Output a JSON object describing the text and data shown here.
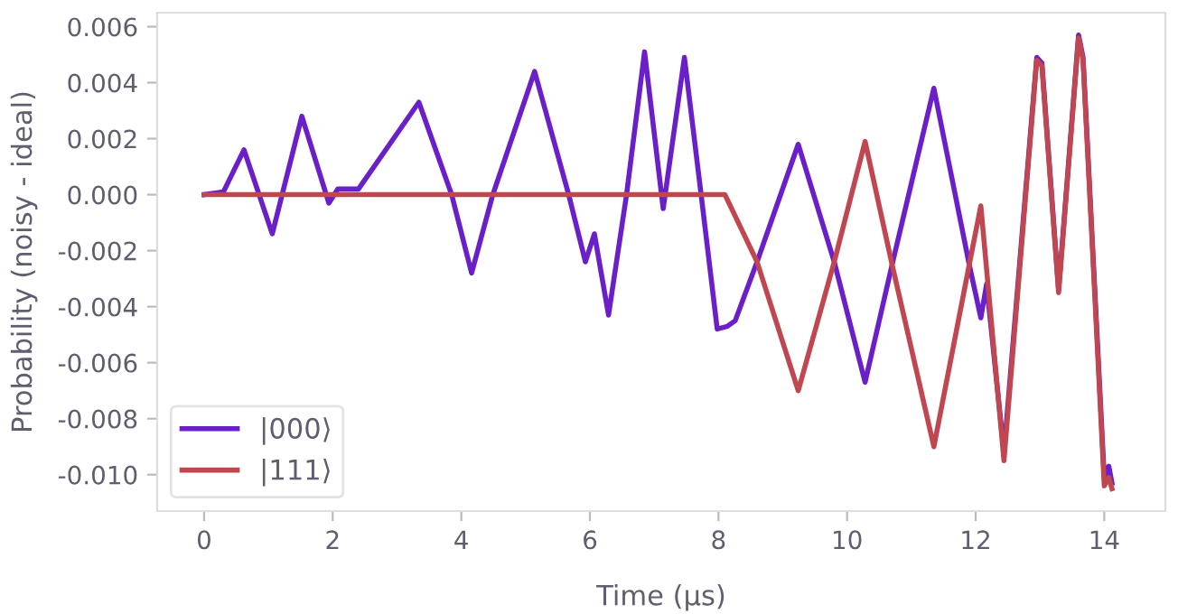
{
  "chart_data": {
    "type": "line",
    "xlabel": "Time (µs)",
    "ylabel": "Probability (noisy - ideal)",
    "series": [
      {
        "name": "|000⟩",
        "color": "#6a1fc8",
        "x": [
          0,
          0.3,
          0.62,
          1.06,
          1.52,
          1.94,
          2.08,
          2.4,
          3.34,
          3.85,
          4.16,
          4.49,
          5.14,
          5.67,
          5.93,
          6.07,
          6.29,
          6.57,
          6.85,
          7.14,
          7.47,
          7.73,
          7.98,
          8.14,
          8.26,
          8.6,
          9.24,
          9.8,
          10.28,
          10.7,
          11.35,
          11.9,
          12.08,
          12.17,
          12.44,
          12.95,
          13.03,
          13.29,
          13.6,
          13.67,
          14.0,
          14.07,
          14.12
        ],
        "values": [
          0,
          0.0001,
          0.0016,
          -0.0014,
          0.0028,
          -0.0003,
          0.0002,
          0.0002,
          0.0033,
          0,
          -0.0028,
          0,
          0.0044,
          0,
          -0.0024,
          -0.0014,
          -0.0043,
          0,
          0.0051,
          -0.0005,
          0.0049,
          0,
          -0.0048,
          -0.0047,
          -0.0045,
          -0.0024,
          0.0018,
          -0.0024,
          -0.0067,
          -0.0025,
          0.0038,
          -0.0025,
          -0.0044,
          -0.0032,
          -0.0092,
          0.0049,
          0.0047,
          -0.0034,
          0.0057,
          0.0049,
          -0.0101,
          -0.0097,
          -0.0103
        ]
      },
      {
        "name": "|111⟩",
        "color": "#c0474f",
        "x": [
          0,
          8.1,
          8.6,
          9.24,
          9.8,
          10.28,
          10.7,
          11.35,
          11.9,
          12.08,
          12.44,
          12.95,
          13.03,
          13.29,
          13.6,
          13.67,
          14.0,
          14.07,
          14.12
        ],
        "values": [
          0,
          0,
          -0.0024,
          -0.007,
          -0.0024,
          0.0019,
          -0.0025,
          -0.009,
          -0.0025,
          -0.0004,
          -0.0095,
          0.0048,
          0.0046,
          -0.0035,
          0.0056,
          0.0048,
          -0.0104,
          -0.0101,
          -0.0105
        ]
      }
    ],
    "xlim": [
      -0.73,
      14.95
    ],
    "ylim": [
      -0.0113,
      0.0065
    ],
    "xticks": [
      0,
      2,
      4,
      6,
      8,
      10,
      12,
      14
    ],
    "yticks": [
      {
        "value": -0.01,
        "label": "-0.010"
      },
      {
        "value": -0.008,
        "label": "-0.008"
      },
      {
        "value": -0.006,
        "label": "-0.006"
      },
      {
        "value": -0.004,
        "label": "-0.004"
      },
      {
        "value": -0.002,
        "label": "-0.002"
      },
      {
        "value": 0,
        "label": "0.000"
      },
      {
        "value": 0.002,
        "label": "0.002"
      },
      {
        "value": 0.004,
        "label": "0.004"
      },
      {
        "value": 0.006,
        "label": "0.006"
      }
    ],
    "legend": "bottom left",
    "grid": false,
    "line_style": "solid",
    "marker": "none"
  }
}
